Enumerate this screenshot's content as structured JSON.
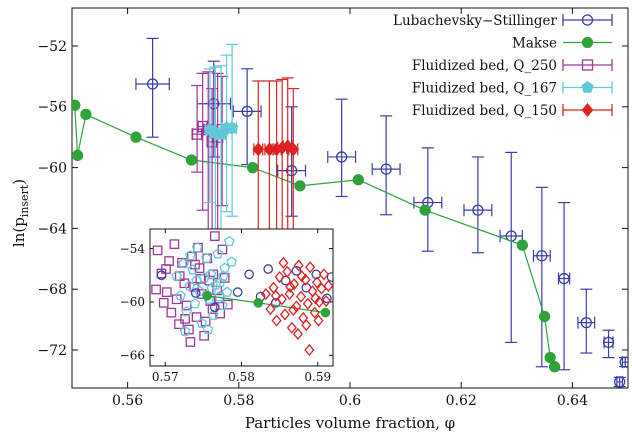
{
  "chart_data": [
    {
      "type": "scatter",
      "xlabel": "Particles volume fraction, φ",
      "ylabel_main": "ln(p",
      "ylabel_sub": "insert",
      "ylabel_close": ")",
      "xlim": [
        0.55,
        0.65
      ],
      "ylim": [
        -74.5,
        -49.5
      ],
      "xticks": [
        0.56,
        0.58,
        0.6,
        0.62,
        0.64
      ],
      "xtick_labels": [
        "0.56",
        "0.58",
        "0.6",
        "0.62",
        "0.64"
      ],
      "yticks": [
        -52,
        -56,
        -60,
        -64,
        -68,
        -72
      ],
      "ytick_labels": [
        "−52",
        "−56",
        "−60",
        "−64",
        "−68",
        "−72"
      ],
      "grid": false,
      "legend_position": "top-right",
      "series": [
        {
          "name": "Lubachevsky−Stillinger",
          "marker": "open-circle",
          "color": "#3a3fa8",
          "points": [
            {
              "x": 0.5645,
              "y": -54.5,
              "xerr": 0.003,
              "yerr_lo": 3.5,
              "yerr_hi": 3.0
            },
            {
              "x": 0.5755,
              "y": -55.8,
              "xerr": 0.003,
              "yerr_lo": 3.5,
              "yerr_hi": 2.8
            },
            {
              "x": 0.5815,
              "y": -56.3,
              "xerr": 0.0025,
              "yerr_lo": 3.5,
              "yerr_hi": 2.8
            },
            {
              "x": 0.5895,
              "y": -60.2,
              "xerr": 0.0025,
              "yerr_lo": 3.0,
              "yerr_hi": 4.2
            },
            {
              "x": 0.5985,
              "y": -59.3,
              "xerr": 0.0025,
              "yerr_lo": 2.6,
              "yerr_hi": 3.8
            },
            {
              "x": 0.6065,
              "y": -60.1,
              "xerr": 0.0025,
              "yerr_lo": 3.0,
              "yerr_hi": 3.5
            },
            {
              "x": 0.614,
              "y": -62.3,
              "xerr": 0.0025,
              "yerr_lo": 3.2,
              "yerr_hi": 3.6
            },
            {
              "x": 0.623,
              "y": -62.8,
              "xerr": 0.0025,
              "yerr_lo": 2.8,
              "yerr_hi": 3.5
            },
            {
              "x": 0.629,
              "y": -64.5,
              "xerr": 0.002,
              "yerr_lo": 7.0,
              "yerr_hi": 5.5
            },
            {
              "x": 0.6345,
              "y": -65.8,
              "xerr": 0.0015,
              "yerr_lo": 7.3,
              "yerr_hi": 4.5
            },
            {
              "x": 0.6385,
              "y": -67.3,
              "xerr": 0.001,
              "yerr_lo": 6.0,
              "yerr_hi": 5.0
            },
            {
              "x": 0.6425,
              "y": -70.2,
              "xerr": 0.0015,
              "yerr_lo": 2.0,
              "yerr_hi": 2.2
            },
            {
              "x": 0.6465,
              "y": -71.5,
              "xerr": 0.0008,
              "yerr_lo": 1.0,
              "yerr_hi": 0.8
            },
            {
              "x": 0.6485,
              "y": -74.1,
              "xerr": 0.0005,
              "yerr_lo": 0.3,
              "yerr_hi": 0.3
            },
            {
              "x": 0.6495,
              "y": -72.8,
              "xerr": 0.0005,
              "yerr_lo": 0.3,
              "yerr_hi": 0.3
            }
          ]
        },
        {
          "name": "Makse",
          "marker": "filled-circle",
          "color": "#2fa33a",
          "points": [
            {
              "x": 0.5505,
              "y": -55.9
            },
            {
              "x": 0.551,
              "y": -59.2
            },
            {
              "x": 0.5525,
              "y": -56.5
            },
            {
              "x": 0.5615,
              "y": -58.0
            },
            {
              "x": 0.5715,
              "y": -59.5
            },
            {
              "x": 0.5825,
              "y": -60.0
            },
            {
              "x": 0.591,
              "y": -61.2
            },
            {
              "x": 0.6015,
              "y": -60.8
            },
            {
              "x": 0.6135,
              "y": -62.8
            },
            {
              "x": 0.631,
              "y": -65.1
            },
            {
              "x": 0.635,
              "y": -69.8
            },
            {
              "x": 0.636,
              "y": -72.5
            },
            {
              "x": 0.6368,
              "y": -73.1
            }
          ]
        },
        {
          "name": "Fluidized bed, Q_250",
          "marker": "open-square",
          "color": "#a0359b",
          "points": [
            {
              "x": 0.5725,
              "y": -57.8,
              "xerr": 0.0008,
              "yerr_lo": 2.5,
              "yerr_hi": 3.2
            },
            {
              "x": 0.5735,
              "y": -57.3,
              "xerr": 0.0008,
              "yerr_lo": 5.5,
              "yerr_hi": 3.5
            },
            {
              "x": 0.5745,
              "y": -57.5,
              "xerr": 0.0008,
              "yerr_lo": 7.5,
              "yerr_hi": 3.8
            },
            {
              "x": 0.5752,
              "y": -58.3,
              "xerr": 0.0008,
              "yerr_lo": 6.0,
              "yerr_hi": 3.5
            },
            {
              "x": 0.5762,
              "y": -58.0,
              "xerr": 0.0008,
              "yerr_lo": 6.5,
              "yerr_hi": 4.2
            },
            {
              "x": 0.577,
              "y": -57.5,
              "xerr": 0.0008,
              "yerr_lo": 5.0,
              "yerr_hi": 3.5
            }
          ]
        },
        {
          "name": "Fluidized bed, Q_167",
          "marker": "filled-pentagon",
          "color": "#63c8d8",
          "points": [
            {
              "x": 0.5748,
              "y": -57.5,
              "xerr": 0.0008,
              "yerr_lo": 4.8,
              "yerr_hi": 4.0
            },
            {
              "x": 0.5758,
              "y": -57.7,
              "xerr": 0.0008,
              "yerr_lo": 7.0,
              "yerr_hi": 4.3
            },
            {
              "x": 0.5768,
              "y": -57.8,
              "xerr": 0.0008,
              "yerr_lo": 6.5,
              "yerr_hi": 4.5
            },
            {
              "x": 0.5778,
              "y": -57.4,
              "xerr": 0.0008,
              "yerr_lo": 5.5,
              "yerr_hi": 4.8
            },
            {
              "x": 0.5788,
              "y": -57.4,
              "xerr": 0.0008,
              "yerr_lo": 5.8,
              "yerr_hi": 5.5
            }
          ]
        },
        {
          "name": "Fluidized bed, Q_150",
          "marker": "filled-diamond",
          "color": "#dd2222",
          "points": [
            {
              "x": 0.5835,
              "y": -58.8,
              "xerr": 0.0008,
              "yerr_lo": 6.5,
              "yerr_hi": 4.5
            },
            {
              "x": 0.5855,
              "y": -58.8,
              "xerr": 0.0008,
              "yerr_lo": 6.5,
              "yerr_hi": 4.5
            },
            {
              "x": 0.5868,
              "y": -58.8,
              "xerr": 0.0008,
              "yerr_lo": 7.0,
              "yerr_hi": 4.5
            },
            {
              "x": 0.5878,
              "y": -58.7,
              "xerr": 0.0008,
              "yerr_lo": 6.5,
              "yerr_hi": 4.5
            },
            {
              "x": 0.5888,
              "y": -58.6,
              "xerr": 0.0008,
              "yerr_lo": 6.5,
              "yerr_hi": 4.5
            },
            {
              "x": 0.5898,
              "y": -58.8,
              "xerr": 0.0008,
              "yerr_lo": 6.5,
              "yerr_hi": 4.0
            }
          ]
        }
      ]
    },
    {
      "type": "scatter",
      "inset": true,
      "xlim": [
        0.568,
        0.592
      ],
      "ylim": [
        -67.2,
        -51.8
      ],
      "xticks": [
        0.57,
        0.58,
        0.59
      ],
      "xtick_labels": [
        "0.57",
        "0.58",
        "0.59"
      ],
      "yticks": [
        -54,
        -60,
        -66
      ],
      "ytick_labels": [
        "−54",
        "−60",
        "−66"
      ],
      "series": [
        {
          "name": "Fluidized bed, Q_250",
          "marker": "open-square",
          "color": "#a0359b",
          "points": [
            [
              0.569,
              -54.2
            ],
            [
              0.5695,
              -56.8
            ],
            [
              0.5702,
              -58.9
            ],
            [
              0.5708,
              -61.2
            ],
            [
              0.5712,
              -53.5
            ],
            [
              0.5715,
              -59.7
            ],
            [
              0.5718,
              -62.5
            ],
            [
              0.5722,
              -55.6
            ],
            [
              0.5725,
              -57.9
            ],
            [
              0.5728,
              -60.4
            ],
            [
              0.5731,
              -63.1
            ],
            [
              0.5735,
              -54.9
            ],
            [
              0.5738,
              -58.3
            ],
            [
              0.5741,
              -61.7
            ],
            [
              0.5745,
              -56.2
            ],
            [
              0.5748,
              -59.1
            ],
            [
              0.5751,
              -63.8
            ],
            [
              0.5755,
              -55.1
            ],
            [
              0.5758,
              -57.6
            ],
            [
              0.5762,
              -60.8
            ],
            [
              0.5765,
              -52.6
            ],
            [
              0.5768,
              -58.7
            ],
            [
              0.5772,
              -61.3
            ],
            [
              0.5698,
              -60.1
            ],
            [
              0.5705,
              -55.4
            ],
            [
              0.5733,
              -64.5
            ],
            [
              0.5743,
              -53.9
            ],
            [
              0.5753,
              -62.2
            ],
            [
              0.5763,
              -56.9
            ],
            [
              0.5771,
              -59.6
            ],
            [
              0.5778,
              -57.3
            ],
            [
              0.5688,
              -58.6
            ],
            [
              0.5719,
              -57.1
            ],
            [
              0.5739,
              -55.8
            ],
            [
              0.5759,
              -59.9
            ],
            [
              0.5775,
              -54.1
            ],
            [
              0.5782,
              -60.3
            ],
            [
              0.5726,
              -61.9
            ],
            [
              0.5746,
              -57.4
            ],
            [
              0.5701,
              -56.3
            ]
          ]
        },
        {
          "name": "Fluidized bed, Q_167",
          "marker": "open-pentagon",
          "color": "#63c8d8",
          "points": [
            [
              0.5715,
              -57.1
            ],
            [
              0.572,
              -59.3
            ],
            [
              0.5724,
              -55.7
            ],
            [
              0.5728,
              -61.1
            ],
            [
              0.5732,
              -58.2
            ],
            [
              0.5736,
              -56.4
            ],
            [
              0.5739,
              -60.2
            ],
            [
              0.5742,
              -53.9
            ],
            [
              0.5745,
              -58.8
            ],
            [
              0.5748,
              -62.4
            ],
            [
              0.5751,
              -57.3
            ],
            [
              0.5754,
              -55.1
            ],
            [
              0.5757,
              -59.7
            ],
            [
              0.576,
              -56.9
            ],
            [
              0.5763,
              -61.5
            ],
            [
              0.5766,
              -58.1
            ],
            [
              0.5769,
              -54.6
            ],
            [
              0.5772,
              -57.8
            ],
            [
              0.5775,
              -60.4
            ],
            [
              0.5778,
              -56.2
            ],
            [
              0.5781,
              -58.9
            ],
            [
              0.5784,
              -53.2
            ],
            [
              0.5787,
              -55.5
            ],
            [
              0.5726,
              -63.3
            ],
            [
              0.5741,
              -57.6
            ],
            [
              0.5756,
              -63.1
            ],
            [
              0.5771,
              -59.4
            ],
            [
              0.5733,
              -54.8
            ],
            [
              0.5761,
              -58.5
            ],
            [
              0.5776,
              -57.1
            ]
          ]
        },
        {
          "name": "Lubachevsky−Stillinger",
          "marker": "open-circle",
          "color": "#3a3fa8",
          "points": [
            [
              0.5695,
              -57.0
            ],
            [
              0.574,
              -59.0
            ],
            [
              0.5765,
              -60.6
            ],
            [
              0.5795,
              -58.9
            ],
            [
              0.581,
              -56.9
            ],
            [
              0.5825,
              -59.4
            ],
            [
              0.5835,
              -56.3
            ],
            [
              0.5845,
              -60.1
            ],
            [
              0.5858,
              -57.6
            ],
            [
              0.5872,
              -56.5
            ],
            [
              0.5885,
              -58.4
            ],
            [
              0.5898,
              -56.9
            ],
            [
              0.5912,
              -59.6
            ],
            [
              0.5918,
              -57.2
            ]
          ]
        },
        {
          "name": "Makse",
          "marker": "filled-circle",
          "color": "#2fa33a",
          "points": [
            [
              0.5755,
              -59.3
            ],
            [
              0.5822,
              -60.1
            ],
            [
              0.591,
              -61.2
            ]
          ]
        },
        {
          "name": "Fluidized bed, Q_150",
          "marker": "open-diamond",
          "color": "#dd2222",
          "points": [
            [
              0.5838,
              -60.8
            ],
            [
              0.5842,
              -58.4
            ],
            [
              0.5846,
              -62.1
            ],
            [
              0.585,
              -57.2
            ],
            [
              0.5853,
              -59.7
            ],
            [
              0.5857,
              -61.4
            ],
            [
              0.586,
              -56.6
            ],
            [
              0.5863,
              -59.1
            ],
            [
              0.5866,
              -62.9
            ],
            [
              0.5869,
              -58.0
            ],
            [
              0.5872,
              -60.5
            ],
            [
              0.5875,
              -55.9
            ],
            [
              0.5878,
              -59.4
            ],
            [
              0.5881,
              -61.8
            ],
            [
              0.5884,
              -57.5
            ],
            [
              0.5887,
              -60.2
            ],
            [
              0.589,
              -56.1
            ],
            [
              0.5893,
              -58.8
            ],
            [
              0.5896,
              -61.2
            ],
            [
              0.5899,
              -57.8
            ],
            [
              0.5902,
              -60.0
            ],
            [
              0.5905,
              -58.5
            ],
            [
              0.5908,
              -56.9
            ],
            [
              0.5911,
              -59.9
            ],
            [
              0.5914,
              -58.2
            ],
            [
              0.5855,
              -55.6
            ],
            [
              0.5874,
              -63.6
            ],
            [
              0.5889,
              -65.4
            ],
            [
              0.5864,
              -58.3
            ],
            [
              0.5879,
              -57.1
            ],
            [
              0.5897,
              -59.6
            ],
            [
              0.5845,
              -59.3
            ],
            [
              0.5868,
              -60.9
            ],
            [
              0.5885,
              -62.6
            ],
            [
              0.5901,
              -62.1
            ],
            [
              0.5832,
              -59.1
            ]
          ]
        }
      ]
    }
  ]
}
